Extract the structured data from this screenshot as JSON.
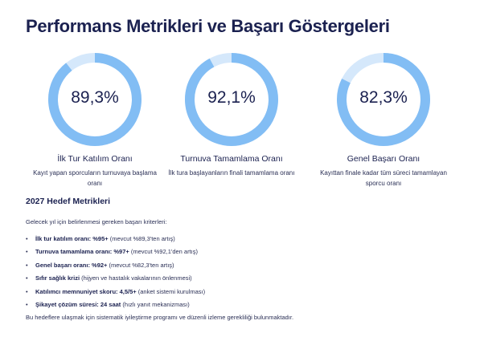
{
  "title": "Performans Metrikleri ve Başarı Göstergeleri",
  "colors": {
    "ring": "#82bdf4",
    "ring_track": "#d5e8fb"
  },
  "metrics": [
    {
      "value": "89,3%",
      "percent": 89.3,
      "label": "İlk Tur Katılım Oranı",
      "desc": "Kayıt yapan sporcuların turnuvaya başlama oranı"
    },
    {
      "value": "92,1%",
      "percent": 92.1,
      "label": "Turnuva Tamamlama Oranı",
      "desc": "İlk tura başlayanların finali tamamlama oranı"
    },
    {
      "value": "82,3%",
      "percent": 82.3,
      "label": "Genel Başarı Oranı",
      "desc": "Kayıttan finale kadar tüm süreci tamamlayan sporcu oranı"
    }
  ],
  "targets": {
    "heading": "2027 Hedef Metrikleri",
    "intro": "Gelecek yıl için belirlenmesi gereken başarı kriterleri:",
    "items": [
      {
        "bold": "İlk tur katılım oranı: %95+",
        "rest": " (mevcut %89,3'ten artış)"
      },
      {
        "bold": "Turnuva tamamlama oranı: %97+",
        "rest": " (mevcut %92,1'den artış)"
      },
      {
        "bold": "Genel başarı oranı: %92+",
        "rest": " (mevcut %82,3'ten artış)"
      },
      {
        "bold": "Sıfır sağlık krizi",
        "rest": " (hijyen ve hastalık vakalarının önlenmesi)"
      },
      {
        "bold": "Katılımcı memnuniyet skoru: 4,5/5+",
        "rest": " (anket sistemi kurulması)"
      },
      {
        "bold": "Şikayet çözüm süresi: 24 saat",
        "rest": " (hızlı yanıt mekanizması)"
      }
    ],
    "outro": "Bu hedeflere ulaşmak için sistematik iyileştirme programı ve düzenli izleme gerekliliği bulunmaktadır."
  }
}
